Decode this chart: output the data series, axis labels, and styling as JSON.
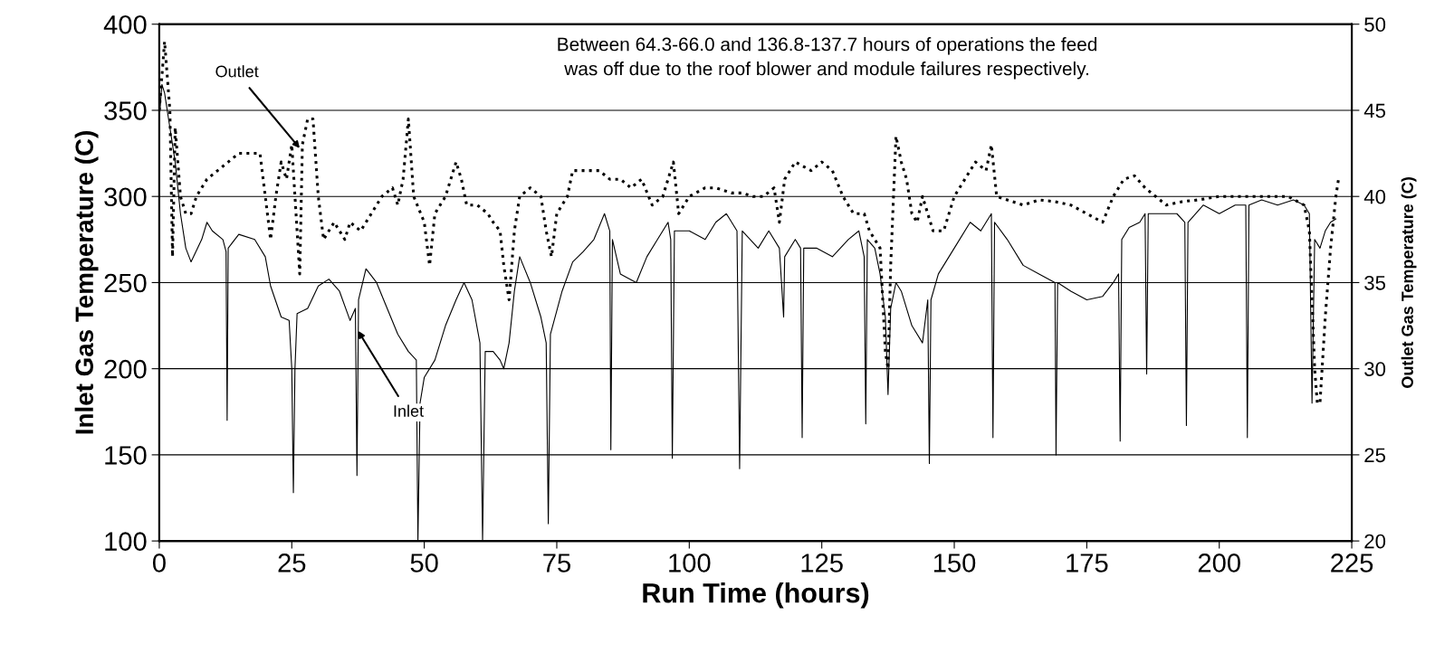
{
  "chart_data": {
    "type": "line",
    "xlabel": "Run Time (hours)",
    "ylabel": "Inlet Gas Temperature (C)",
    "y2label": "Outlet Gas Temperature (C)",
    "xlim": [
      0,
      225
    ],
    "xticks": [
      0,
      25,
      50,
      75,
      100,
      125,
      150,
      175,
      200,
      225
    ],
    "ylim": [
      100,
      400
    ],
    "yticks": [
      100,
      150,
      200,
      250,
      300,
      350,
      400
    ],
    "y2lim": [
      20,
      50
    ],
    "y2ticks": [
      20,
      25,
      30,
      35,
      40,
      45,
      50
    ],
    "grid": "y",
    "legend": false,
    "annotations": [
      "Between 64.3-66.0 and 136.8-137.7 hours of operations the feed\nwas off due to the roof blower and module failures respectively.",
      {
        "text": "Outlet",
        "x": 26.5,
        "y": 328
      },
      {
        "text": "Inlet",
        "x": 37.5,
        "y": 222
      }
    ],
    "series": [
      {
        "color": "#000000",
        "line_style": "solid",
        "x": [
          0,
          0.5,
          1,
          2,
          3,
          4,
          5,
          6,
          8,
          9,
          10,
          12,
          12.6,
          12.8,
          13,
          15,
          18,
          20,
          21,
          23,
          24.5,
          25,
          25.3,
          25.6,
          26,
          28,
          30,
          32,
          34,
          36,
          37,
          37.3,
          37.6,
          39,
          41,
          43,
          45,
          47,
          48.5,
          48.8,
          49.2,
          50,
          52,
          54,
          56,
          57.5,
          59,
          60.5,
          61,
          61.5,
          63,
          64.3,
          65,
          66,
          67,
          68,
          70,
          72,
          73,
          73.4,
          73.8,
          76,
          78,
          80,
          82,
          84,
          85,
          85.2,
          85.5,
          87,
          90,
          92,
          94,
          96,
          96.5,
          96.8,
          97.2,
          100,
          103,
          105,
          107,
          109,
          109.5,
          110,
          113,
          115,
          117,
          117.8,
          118,
          120,
          121,
          121.3,
          121.6,
          124,
          127,
          130,
          132,
          133,
          133.3,
          133.6,
          135,
          136,
          137,
          137.5,
          138,
          139,
          140,
          142,
          144,
          145,
          145.3,
          145.6,
          147,
          150,
          153,
          155,
          157,
          157.3,
          157.6,
          160,
          163,
          166,
          169,
          169.2,
          169.5,
          172,
          175,
          178,
          180,
          181,
          181.3,
          181.6,
          183,
          185,
          186,
          186.3,
          186.6,
          189,
          192,
          193.5,
          193.8,
          194.1,
          197,
          200,
          203,
          205,
          205.3,
          205.6,
          208,
          211,
          214,
          216,
          217,
          217.5,
          218,
          219,
          220,
          221,
          222
        ],
        "values": [
          345,
          365,
          360,
          340,
          320,
          290,
          270,
          262,
          275,
          285,
          280,
          275,
          268,
          170,
          270,
          278,
          275,
          265,
          248,
          230,
          228,
          200,
          128,
          200,
          232,
          235,
          248,
          252,
          245,
          228,
          235,
          138,
          240,
          258,
          250,
          235,
          220,
          210,
          205,
          100,
          180,
          195,
          205,
          225,
          240,
          250,
          240,
          215,
          100,
          210,
          210,
          205,
          200,
          215,
          245,
          265,
          250,
          230,
          215,
          110,
          220,
          245,
          262,
          268,
          275,
          290,
          280,
          153,
          275,
          255,
          250,
          265,
          275,
          285,
          275,
          148,
          280,
          280,
          275,
          285,
          290,
          280,
          142,
          280,
          270,
          280,
          270,
          230,
          265,
          275,
          270,
          160,
          270,
          270,
          265,
          275,
          280,
          265,
          168,
          275,
          270,
          255,
          230,
          185,
          235,
          250,
          245,
          225,
          215,
          240,
          145,
          240,
          255,
          270,
          285,
          280,
          290,
          160,
          285,
          275,
          260,
          255,
          250,
          150,
          250,
          245,
          240,
          242,
          250,
          255,
          158,
          275,
          282,
          285,
          290,
          197,
          290,
          290,
          290,
          285,
          167,
          285,
          295,
          290,
          295,
          295,
          160,
          295,
          298,
          295,
          298,
          295,
          290,
          180,
          275,
          270,
          280,
          285,
          287
        ]
      },
      {
        "color": "#000000",
        "axis": "y2",
        "line_style": "dotted",
        "x": [
          0,
          0.5,
          1,
          2,
          2.5,
          3,
          4,
          5,
          6,
          7,
          9,
          11,
          13,
          15,
          17,
          19,
          20,
          21,
          22,
          23,
          24,
          25,
          26,
          26.5,
          27,
          28,
          29,
          30,
          31,
          33,
          35,
          36,
          38,
          40,
          42,
          44,
          45,
          46,
          47,
          48,
          50,
          51,
          52,
          54,
          56,
          57,
          58,
          60,
          62,
          63,
          64.3,
          65,
          66,
          67,
          68,
          70,
          72,
          73,
          74,
          75,
          77,
          78,
          80,
          83,
          85,
          87,
          89,
          91,
          93,
          95,
          97,
          98,
          100,
          103,
          105,
          108,
          110,
          112,
          114,
          116,
          117,
          118,
          120,
          123,
          125,
          127,
          129,
          131,
          133,
          134,
          136,
          137,
          137.5,
          138,
          139,
          140,
          141,
          142,
          143,
          144,
          146,
          148,
          150,
          152,
          154,
          156,
          157,
          158,
          160,
          163,
          166,
          169,
          172,
          175,
          178,
          180,
          182,
          184,
          186,
          188,
          190,
          193,
          196,
          200,
          203,
          206,
          210,
          213,
          216,
          217,
          218,
          218.5,
          219,
          220,
          221,
          222,
          222.5
        ],
        "values": [
          45,
          47,
          49,
          45,
          36.5,
          44,
          40,
          39,
          39,
          40,
          41,
          41.5,
          42,
          42.5,
          42.5,
          42.5,
          40,
          37.5,
          40,
          42,
          41,
          43,
          38,
          35.5,
          43,
          44.5,
          44.5,
          40,
          37.5,
          38.5,
          37.5,
          38.5,
          38,
          39,
          40,
          40.5,
          39.5,
          41,
          44.5,
          40,
          38.5,
          36,
          39,
          40,
          42,
          41,
          39.5,
          39.5,
          39,
          38.5,
          38,
          36,
          34,
          38,
          40,
          40.5,
          40,
          38,
          36.5,
          39,
          40,
          41.5,
          41.5,
          41.5,
          41,
          41,
          40.5,
          41,
          39.5,
          40,
          42,
          39,
          40,
          40.5,
          40.5,
          40.2,
          40.2,
          40,
          40,
          40.5,
          38.5,
          41,
          42,
          41.5,
          42,
          41.5,
          40,
          39,
          39,
          38,
          37,
          31,
          30,
          36,
          43.5,
          42,
          41,
          39,
          38.5,
          40,
          38,
          38,
          40,
          41,
          42,
          41.5,
          43,
          40,
          39.8,
          39.5,
          39.8,
          39.7,
          39.5,
          39,
          38.5,
          40,
          41,
          41.2,
          40.5,
          40,
          39.5,
          39.7,
          39.8,
          40,
          40,
          40,
          40,
          40,
          39.5,
          38,
          30,
          28,
          28,
          33,
          37,
          40,
          41
        ]
      }
    ]
  }
}
